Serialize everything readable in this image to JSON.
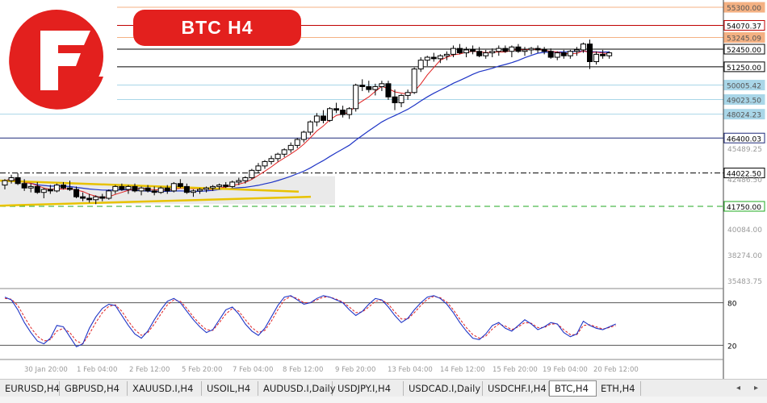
{
  "header": {
    "title": "BTC  H4"
  },
  "chart_data": {
    "type": "candlestick",
    "instrument": "BTC",
    "timeframe": "H4",
    "price_axis": {
      "range": [
        35483.75,
        56000
      ],
      "tick_labels": [
        "45489.25",
        "42486.50",
        "40084.00",
        "38274.00",
        "35483.75"
      ]
    },
    "time_axis": {
      "labels": [
        "30 Jan 20:00",
        "1 Feb 04:00",
        "2 Feb 12:00",
        "5 Feb 20:00",
        "7 Feb 04:00",
        "8 Feb 12:00",
        "9 Feb 20:00",
        "13 Feb 04:00",
        "14 Feb 12:00",
        "15 Feb 20:00",
        "19 Feb 04:00",
        "20 Feb 12:00"
      ]
    },
    "horizontal_levels": [
      {
        "value": 55300.0,
        "label": "55300.00",
        "color": "#f4b183",
        "style": "solid"
      },
      {
        "value": 54070.37,
        "label": "54070.37",
        "color": "#c00000",
        "style": "solid"
      },
      {
        "value": 53245.09,
        "label": "53245.09",
        "color": "#f4b183",
        "style": "solid"
      },
      {
        "value": 52450.0,
        "label": "52450.00",
        "color": "#000000",
        "style": "solid"
      },
      {
        "value": 51250.0,
        "label": "51250.00",
        "color": "#000000",
        "style": "solid"
      },
      {
        "value": 50005.42,
        "label": "50005.42",
        "color": "#a9d6e8",
        "style": "solid"
      },
      {
        "value": 49023.5,
        "label": "49023.50",
        "color": "#a9d6e8",
        "style": "solid"
      },
      {
        "value": 48024.23,
        "label": "48024.23",
        "color": "#a9d6e8",
        "style": "solid"
      },
      {
        "value": 46400.03,
        "label": "46400.03",
        "color": "#1f2a7a",
        "style": "solid"
      },
      {
        "value": 44022.5,
        "label": "44022.50",
        "color": "#000000",
        "style": "dashdot"
      },
      {
        "value": 41750.0,
        "label": "41750.00",
        "color": "#22aa22",
        "style": "dashed"
      }
    ],
    "candles": [
      [
        43200,
        43600,
        42900,
        43500
      ],
      [
        43500,
        43900,
        43300,
        43700
      ],
      [
        43700,
        44000,
        43200,
        43300
      ],
      [
        43300,
        43600,
        42800,
        43000
      ],
      [
        43000,
        43300,
        42700,
        43100
      ],
      [
        43100,
        43400,
        42600,
        42700
      ],
      [
        42700,
        43000,
        42300,
        42900
      ],
      [
        42900,
        43200,
        42600,
        42800
      ],
      [
        42800,
        43300,
        42700,
        43200
      ],
      [
        43200,
        43400,
        42900,
        43000
      ],
      [
        43000,
        43500,
        42800,
        42900
      ],
      [
        42900,
        43100,
        42300,
        42400
      ],
      [
        42400,
        42700,
        42100,
        42300
      ],
      [
        42300,
        42600,
        42000,
        42200
      ],
      [
        42200,
        42500,
        41900,
        42400
      ],
      [
        42400,
        42600,
        42100,
        42300
      ],
      [
        42300,
        42900,
        42200,
        42800
      ],
      [
        42800,
        43200,
        42600,
        43100
      ],
      [
        43100,
        43300,
        42800,
        42900
      ],
      [
        42900,
        43200,
        42600,
        43100
      ],
      [
        43100,
        43300,
        42700,
        42800
      ],
      [
        42800,
        43100,
        42500,
        43000
      ],
      [
        43000,
        43200,
        42700,
        42800
      ],
      [
        42800,
        43100,
        42500,
        42700
      ],
      [
        42700,
        43100,
        42600,
        43000
      ],
      [
        43000,
        43200,
        42600,
        42800
      ],
      [
        42800,
        43400,
        42700,
        43300
      ],
      [
        43300,
        43600,
        43000,
        43100
      ],
      [
        43100,
        43300,
        42600,
        42700
      ],
      [
        42700,
        42900,
        42400,
        42800
      ],
      [
        42800,
        43000,
        42600,
        42900
      ],
      [
        42900,
        43100,
        42700,
        43000
      ],
      [
        43000,
        43200,
        42800,
        43100
      ],
      [
        43100,
        43300,
        42900,
        43200
      ],
      [
        43200,
        43400,
        43000,
        43100
      ],
      [
        43100,
        43500,
        43000,
        43400
      ],
      [
        43400,
        43700,
        43200,
        43500
      ],
      [
        43500,
        43800,
        43300,
        43700
      ],
      [
        43700,
        44300,
        43600,
        44200
      ],
      [
        44200,
        44700,
        44000,
        44500
      ],
      [
        44500,
        44900,
        44300,
        44800
      ],
      [
        44800,
        45200,
        44600,
        45000
      ],
      [
        45000,
        45400,
        44800,
        45300
      ],
      [
        45300,
        45700,
        45100,
        45600
      ],
      [
        45600,
        46100,
        45400,
        45900
      ],
      [
        45900,
        46400,
        45700,
        46300
      ],
      [
        46300,
        46900,
        46100,
        46800
      ],
      [
        46800,
        47600,
        46600,
        47500
      ],
      [
        47500,
        48100,
        47200,
        47900
      ],
      [
        47900,
        48300,
        47400,
        47600
      ],
      [
        47600,
        48500,
        47500,
        48400
      ],
      [
        48400,
        48800,
        48100,
        48300
      ],
      [
        48300,
        48600,
        47800,
        48000
      ],
      [
        48000,
        48500,
        47700,
        48400
      ],
      [
        48400,
        50100,
        48200,
        50000
      ],
      [
        50000,
        50400,
        49600,
        49900
      ],
      [
        49900,
        50300,
        49500,
        49700
      ],
      [
        49700,
        50100,
        49300,
        49900
      ],
      [
        49900,
        50300,
        49600,
        50100
      ],
      [
        50100,
        50300,
        49000,
        49200
      ],
      [
        49200,
        49700,
        48300,
        48800
      ],
      [
        48800,
        49400,
        48500,
        49300
      ],
      [
        49300,
        49700,
        49000,
        49500
      ],
      [
        49500,
        51200,
        49400,
        51100
      ],
      [
        51100,
        51900,
        50900,
        51700
      ],
      [
        51700,
        52000,
        51300,
        51900
      ],
      [
        51900,
        52200,
        51600,
        51800
      ],
      [
        51800,
        52100,
        51500,
        52000
      ],
      [
        52000,
        52300,
        51700,
        52100
      ],
      [
        52100,
        52700,
        51900,
        52500
      ],
      [
        52500,
        52800,
        52100,
        52200
      ],
      [
        52200,
        52600,
        51900,
        52400
      ],
      [
        52400,
        52700,
        52100,
        52300
      ],
      [
        52300,
        52600,
        51900,
        52000
      ],
      [
        52000,
        52400,
        51800,
        52200
      ],
      [
        52200,
        52500,
        51900,
        52300
      ],
      [
        52300,
        52700,
        52000,
        52500
      ],
      [
        52500,
        52700,
        52200,
        52300
      ],
      [
        52300,
        52700,
        51900,
        52600
      ],
      [
        52600,
        52800,
        52200,
        52300
      ],
      [
        52300,
        52600,
        52000,
        52400
      ],
      [
        52400,
        52600,
        52100,
        52500
      ],
      [
        52500,
        52700,
        52200,
        52400
      ],
      [
        52400,
        52600,
        52100,
        52300
      ],
      [
        52300,
        52500,
        51800,
        51900
      ],
      [
        51900,
        52300,
        51700,
        52200
      ],
      [
        52200,
        52400,
        51800,
        52000
      ],
      [
        52000,
        52400,
        51800,
        52300
      ],
      [
        52300,
        52600,
        52000,
        52400
      ],
      [
        52400,
        52900,
        52200,
        52800
      ],
      [
        52800,
        53100,
        51100,
        51600
      ],
      [
        51600,
        52300,
        51400,
        52100
      ],
      [
        52100,
        52400,
        51800,
        52000
      ],
      [
        52000,
        52300,
        51800,
        52200
      ]
    ],
    "stochastic": {
      "levels": [
        80,
        20
      ],
      "level_labels": [
        "80",
        "20"
      ],
      "range": [
        0,
        100
      ],
      "main_color": "#1f35c6",
      "signal_color": "#e02020",
      "main": [
        88,
        84,
        70,
        52,
        38,
        26,
        22,
        30,
        48,
        46,
        32,
        18,
        22,
        44,
        60,
        72,
        78,
        76,
        62,
        48,
        36,
        30,
        40,
        56,
        70,
        82,
        86,
        80,
        68,
        56,
        46,
        38,
        42,
        56,
        70,
        74,
        64,
        50,
        40,
        34,
        44,
        60,
        76,
        88,
        90,
        84,
        78,
        80,
        86,
        90,
        88,
        84,
        80,
        70,
        62,
        68,
        78,
        86,
        84,
        74,
        62,
        52,
        58,
        70,
        80,
        88,
        90,
        86,
        78,
        66,
        52,
        40,
        30,
        28,
        36,
        48,
        52,
        44,
        40,
        48,
        56,
        50,
        42,
        46,
        52,
        50,
        38,
        32,
        36,
        54,
        48,
        44,
        42,
        46,
        50
      ],
      "signal": [
        86,
        85,
        76,
        60,
        45,
        33,
        26,
        28,
        40,
        44,
        38,
        26,
        22,
        36,
        52,
        66,
        75,
        77,
        68,
        54,
        42,
        34,
        38,
        50,
        64,
        77,
        84,
        82,
        72,
        60,
        50,
        42,
        41,
        52,
        64,
        72,
        68,
        56,
        45,
        38,
        41,
        54,
        70,
        84,
        89,
        86,
        80,
        80,
        84,
        88,
        88,
        85,
        81,
        74,
        66,
        67,
        74,
        82,
        84,
        78,
        67,
        57,
        57,
        66,
        76,
        85,
        89,
        87,
        81,
        70,
        57,
        45,
        35,
        30,
        33,
        43,
        50,
        47,
        42,
        46,
        52,
        51,
        45,
        45,
        50,
        50,
        42,
        35,
        35,
        48,
        49,
        46,
        43,
        45,
        48
      ]
    },
    "colors": {
      "bull_body": "#ffffff",
      "bear_body": "#000000",
      "candle_outline": "#000000",
      "ma_fast": "#e02020",
      "ma_slow": "#1f35c6",
      "trendline": "#e8c200",
      "accent": "#e3201e"
    }
  },
  "tabs": [
    {
      "label": "EURUSD,H4",
      "active": false
    },
    {
      "label": "GBPUSD,H4",
      "active": false
    },
    {
      "label": "XAUUSD.I,H4",
      "active": false
    },
    {
      "label": "USOIL,H4",
      "active": false
    },
    {
      "label": "AUDUSD.I,Daily",
      "active": false
    },
    {
      "label": "USDJPY.I,H4",
      "active": false
    },
    {
      "label": "USDCAD.I,Daily",
      "active": false
    },
    {
      "label": "USDCHF.I,H4",
      "active": false
    },
    {
      "label": "BTC,H4",
      "active": true
    },
    {
      "label": "ETH,H4",
      "active": false
    }
  ],
  "tab_nav": {
    "prev": "◂",
    "next": "▸"
  }
}
